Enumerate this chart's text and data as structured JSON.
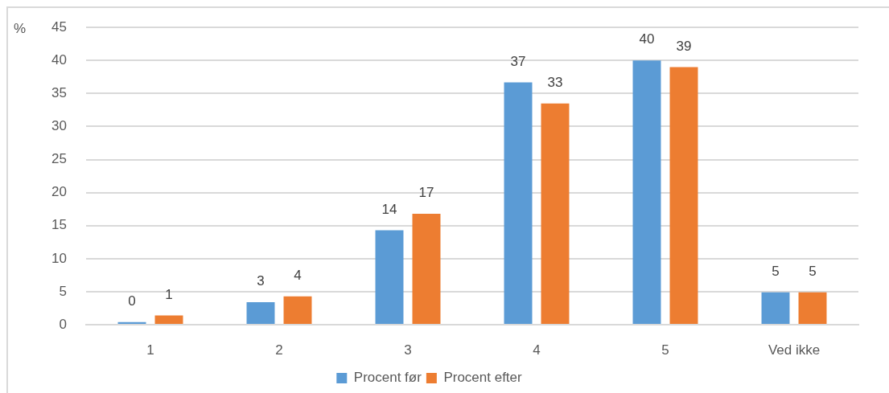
{
  "chart_data": {
    "type": "bar",
    "ylabel": "%",
    "categories": [
      "1",
      "2",
      "3",
      "4",
      "5",
      "Ved ikke"
    ],
    "series": [
      {
        "name": "Procent før",
        "color": "#5b9bd5",
        "values": [
          0.4,
          3.4,
          14.3,
          36.7,
          40,
          4.9
        ],
        "value_labels": [
          "0",
          "3",
          "14",
          "37",
          "40",
          "5"
        ]
      },
      {
        "name": "Procent efter",
        "color": "#ed7d31",
        "values": [
          1.4,
          4.3,
          16.8,
          33.5,
          39,
          4.9
        ],
        "value_labels": [
          "1",
          "4",
          "17",
          "33",
          "39",
          "5"
        ]
      }
    ],
    "ylim": [
      0,
      45
    ],
    "yticks": [
      0,
      5,
      10,
      15,
      20,
      25,
      30,
      35,
      40,
      45
    ],
    "grid": "y",
    "legend": "bottom"
  }
}
